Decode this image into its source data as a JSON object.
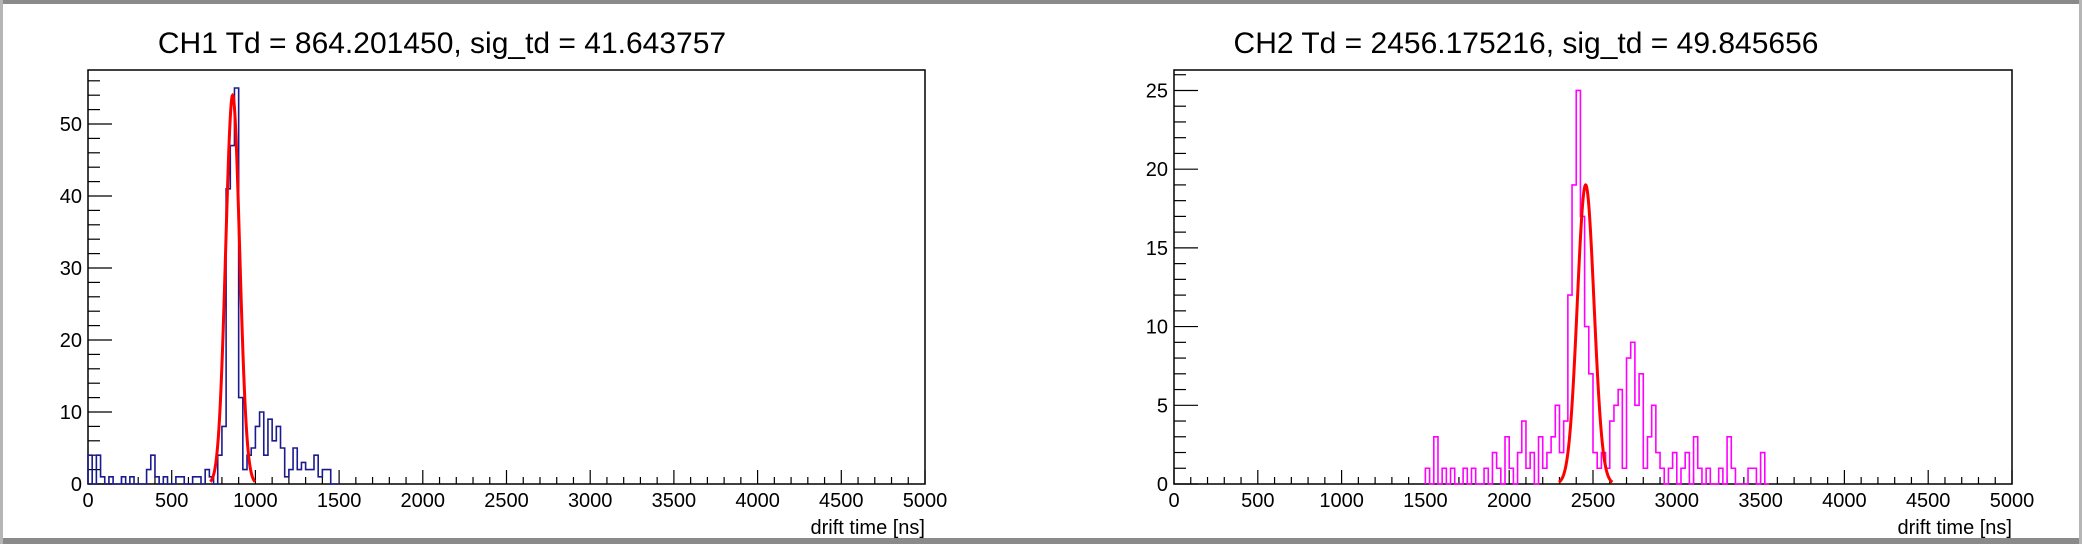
{
  "chart_data": [
    {
      "type": "bar",
      "title": "CH1 Td = 864.201450, sig_td = 41.643757",
      "xlabel": "drift time [ns]",
      "ylabel": "",
      "xlim": [
        0,
        5000
      ],
      "ylim": [
        0,
        57.5
      ],
      "x_ticks": [
        "0",
        "500",
        "1000",
        "1500",
        "2000",
        "2500",
        "3000",
        "3500",
        "4000",
        "4500",
        "5000"
      ],
      "y_ticks": [
        "0",
        "10",
        "20",
        "30",
        "40",
        "50"
      ],
      "bin_width": 25,
      "histogram_color": "#1b1b8f",
      "fit_color": "#ff0000",
      "bins_x": [
        0,
        25,
        50,
        75,
        100,
        125,
        150,
        175,
        200,
        225,
        250,
        275,
        300,
        325,
        350,
        375,
        400,
        425,
        450,
        475,
        500,
        525,
        550,
        575,
        600,
        625,
        650,
        675,
        700,
        725,
        750,
        775,
        800,
        825,
        850,
        875,
        900,
        925,
        950,
        975,
        1000,
        1025,
        1050,
        1075,
        1100,
        1125,
        1150,
        1175,
        1200,
        1225,
        1250,
        1275,
        1300,
        1325,
        1350,
        1375,
        1400,
        1425,
        1450,
        1475
      ],
      "counts": [
        4,
        0,
        4,
        1,
        0,
        1,
        0,
        0,
        1,
        0,
        1,
        0,
        0,
        0,
        2,
        4,
        1,
        0,
        1,
        0,
        0,
        1,
        1,
        0,
        0,
        1,
        1,
        0,
        2,
        1,
        0,
        4,
        8,
        41,
        47,
        55,
        12,
        2,
        4,
        5,
        8,
        10,
        4,
        9,
        6,
        8,
        5,
        1,
        2,
        5,
        2,
        3,
        2,
        2,
        4,
        1,
        2,
        2,
        0,
        0
      ],
      "fit": {
        "model": "gaussian",
        "mean": 864.20145,
        "sigma": 41.643757,
        "amplitude": 54
      }
    },
    {
      "type": "bar",
      "title": "CH2 Td = 2456.175216, sig_td = 49.845656",
      "xlabel": "drift time [ns]",
      "ylabel": "",
      "xlim": [
        0,
        5000
      ],
      "ylim": [
        0,
        26.3
      ],
      "x_ticks": [
        "0",
        "500",
        "1000",
        "1500",
        "2000",
        "2500",
        "3000",
        "3500",
        "4000",
        "4500",
        "5000"
      ],
      "y_ticks": [
        "0",
        "5",
        "10",
        "15",
        "20",
        "25"
      ],
      "bin_width": 25,
      "histogram_color": "#ff00ff",
      "fit_color": "#ff0000",
      "bins_x": [
        1500,
        1525,
        1550,
        1575,
        1600,
        1625,
        1650,
        1675,
        1700,
        1725,
        1750,
        1775,
        1800,
        1825,
        1850,
        1875,
        1900,
        1925,
        1950,
        1975,
        2000,
        2025,
        2050,
        2075,
        2100,
        2125,
        2150,
        2175,
        2200,
        2225,
        2250,
        2275,
        2300,
        2325,
        2350,
        2375,
        2400,
        2425,
        2450,
        2475,
        2500,
        2525,
        2550,
        2575,
        2600,
        2625,
        2650,
        2675,
        2700,
        2725,
        2750,
        2775,
        2800,
        2825,
        2850,
        2875,
        2900,
        2925,
        2950,
        2975,
        3000,
        3025,
        3050,
        3075,
        3100,
        3125,
        3150,
        3175,
        3200,
        3225,
        3250,
        3275,
        3300,
        3325,
        3350,
        3375,
        3400,
        3425,
        3450,
        3475,
        3500,
        3525
      ],
      "counts": [
        1,
        0,
        3,
        0,
        1,
        0,
        1,
        0,
        0,
        1,
        0,
        1,
        0,
        0,
        1,
        0,
        2,
        1,
        0,
        3,
        1,
        0,
        2,
        4,
        1,
        2,
        0,
        3,
        1,
        2,
        3,
        5,
        2,
        4,
        12,
        19,
        25,
        17,
        10,
        7,
        2,
        1,
        2,
        1,
        4,
        5,
        6,
        1,
        8,
        9,
        5,
        7,
        1,
        3,
        5,
        2,
        1,
        0,
        1,
        2,
        0,
        1,
        2,
        0,
        3,
        1,
        0,
        1,
        0,
        0,
        1,
        0,
        3,
        1,
        0,
        0,
        0,
        1,
        1,
        0,
        2,
        0
      ],
      "fit": {
        "model": "gaussian",
        "mean": 2456.175216,
        "sigma": 49.845656,
        "amplitude": 19
      }
    }
  ]
}
